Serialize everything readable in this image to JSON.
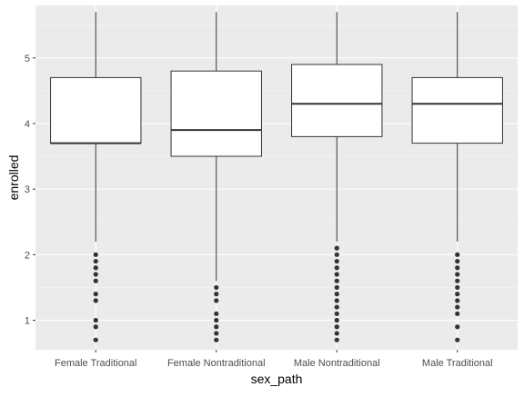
{
  "chart_data": {
    "type": "boxplot",
    "title": "",
    "xlabel": "sex_path",
    "ylabel": "enrolled",
    "ylim": [
      0.55,
      5.8
    ],
    "yticks": [
      1,
      2,
      3,
      4,
      5
    ],
    "grid": true,
    "categories": [
      "Female Traditional",
      "Female Nontraditional",
      "Male Nontraditional",
      "Male Traditional"
    ],
    "boxes": [
      {
        "q1": 3.7,
        "median": 3.7,
        "q3": 4.7,
        "whisker_low": 2.2,
        "whisker_high": 5.7,
        "outliers": [
          0.7,
          0.9,
          1.0,
          1.3,
          1.4,
          1.6,
          1.7,
          1.8,
          1.9,
          2.0
        ]
      },
      {
        "q1": 3.5,
        "median": 3.9,
        "q3": 4.8,
        "whisker_low": 1.6,
        "whisker_high": 5.7,
        "outliers": [
          0.7,
          0.8,
          0.9,
          1.0,
          1.1,
          1.3,
          1.4,
          1.5
        ]
      },
      {
        "q1": 3.8,
        "median": 4.3,
        "q3": 4.9,
        "whisker_low": 2.2,
        "whisker_high": 5.7,
        "outliers": [
          0.7,
          0.8,
          0.9,
          1.0,
          1.1,
          1.2,
          1.3,
          1.4,
          1.5,
          1.6,
          1.7,
          1.8,
          1.9,
          2.0,
          2.1
        ]
      },
      {
        "q1": 3.7,
        "median": 4.3,
        "q3": 4.7,
        "whisker_low": 2.2,
        "whisker_high": 5.7,
        "outliers": [
          0.7,
          0.9,
          1.1,
          1.2,
          1.3,
          1.4,
          1.5,
          1.6,
          1.7,
          1.8,
          1.9,
          2.0
        ]
      }
    ],
    "colors": {
      "panel_background": "#ebebeb",
      "grid_major": "#ffffff",
      "grid_minor": "#f5f5f5",
      "box_fill": "#ffffff",
      "box_stroke": "#333333",
      "outlier": "#333333",
      "tick_text": "#4d4d4d",
      "axis_title": "#000000"
    }
  }
}
